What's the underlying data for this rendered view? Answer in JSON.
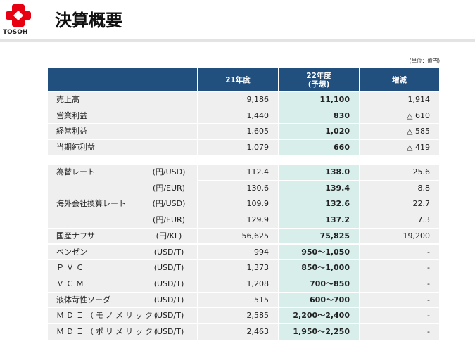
{
  "header": {
    "logo_text": "TOSOH",
    "title": "決算概要"
  },
  "unit_note": "(単位：億円)",
  "table": {
    "columns": [
      "21年度",
      "22年度",
      "増減"
    ],
    "column_note": "(予想)",
    "groups": [
      [
        {
          "label": "売上高",
          "cells": [
            "9,186",
            "11,100",
            "1,914"
          ]
        },
        {
          "label": "営業利益",
          "cells": [
            "1,440",
            "830",
            "△ 610"
          ]
        },
        {
          "label": "経常利益",
          "cells": [
            "1,605",
            "1,020",
            "△ 585"
          ]
        },
        {
          "label": "当期純利益",
          "cells": [
            "1,079",
            "660",
            "△ 419"
          ]
        }
      ],
      [
        {
          "label": "為替レート",
          "unit": "(円/USD)",
          "cells": [
            "112.4",
            "138.0",
            "25.6"
          ]
        },
        {
          "unit": "(円/EUR)",
          "cells": [
            "130.6",
            "139.4",
            "8.8"
          ]
        },
        {
          "label": "海外会社換算レート",
          "unit": "(円/USD)",
          "cells": [
            "109.9",
            "132.6",
            "22.7"
          ]
        },
        {
          "unit": "(円/EUR)",
          "cells": [
            "129.9",
            "137.2",
            "7.3"
          ]
        },
        {
          "label": "国産ナフサ",
          "unit": "(円/KL)",
          "cells": [
            "56,625",
            "75,825",
            "19,200"
          ]
        },
        {
          "label": "ベンゼン",
          "unit": "(USD/T)",
          "cells": [
            "994",
            "950～1,050",
            "-"
          ]
        },
        {
          "label": "ＰＶＣ",
          "unit": "(USD/T)",
          "cells": [
            "1,373",
            "850～1,000",
            "-"
          ]
        },
        {
          "label": "ＶＣＭ",
          "unit": "(USD/T)",
          "cells": [
            "1,208",
            "700～850",
            "-"
          ]
        },
        {
          "label": "液体苛性ソーダ",
          "unit": "(USD/T)",
          "cells": [
            "515",
            "600～700",
            "-"
          ]
        },
        {
          "label": "ＭＤＩ（モノメリック）",
          "unit": "(USD/T)",
          "cells": [
            "2,585",
            "2,200～2,400",
            "-"
          ]
        },
        {
          "label": "ＭＤＩ（ポリメリック）",
          "unit": "(USD/T)",
          "cells": [
            "2,463",
            "1,950～2,250",
            "-"
          ]
        }
      ]
    ]
  }
}
